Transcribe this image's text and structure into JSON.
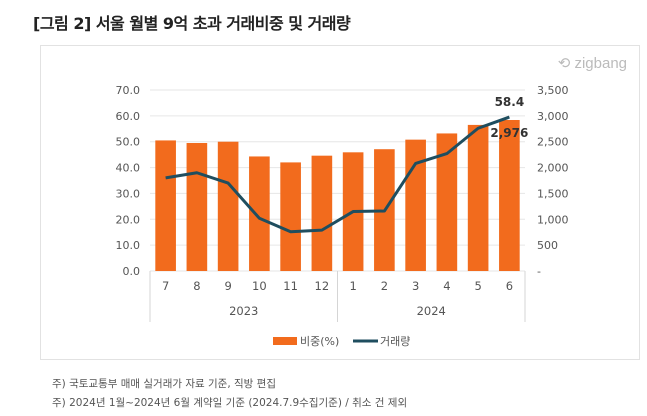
{
  "title": "[그림 2] 서울 월별 9억 초과 거래비중 및 거래량",
  "logo": "zigbang",
  "chart_data": {
    "type": "bar+line",
    "categories": [
      "7",
      "8",
      "9",
      "10",
      "11",
      "12",
      "1",
      "2",
      "3",
      "4",
      "5",
      "6"
    ],
    "year_groups": [
      {
        "label": "2023",
        "span": 6
      },
      {
        "label": "2024",
        "span": 6
      }
    ],
    "series": [
      {
        "name": "비중(%)",
        "type": "bar",
        "axis": "left",
        "color": "#f26b1d",
        "values": [
          50.5,
          49.5,
          50.0,
          44.3,
          42.0,
          44.6,
          45.9,
          47.1,
          50.8,
          53.2,
          56.5,
          58.4
        ]
      },
      {
        "name": "거래량",
        "type": "line",
        "axis": "right",
        "color": "#1f4e5f",
        "values": [
          1800,
          1900,
          1700,
          1020,
          760,
          790,
          1150,
          1160,
          2080,
          2270,
          2760,
          2976
        ]
      }
    ],
    "y_left": {
      "range": [
        0,
        70
      ],
      "ticks": [
        "0.0",
        "10.0",
        "20.0",
        "30.0",
        "40.0",
        "50.0",
        "60.0",
        "70.0"
      ]
    },
    "y_right": {
      "range": [
        0,
        3500
      ],
      "ticks": [
        "-",
        "500",
        "1,000",
        "1,500",
        "2,000",
        "2,500",
        "3,000",
        "3,500"
      ]
    },
    "data_labels": {
      "bar_last": "58.4",
      "line_last": "2,976"
    },
    "grid": true,
    "legend": "bottom"
  },
  "notes": [
    "주) 국토교통부 매매 실거래가 자료 기준, 직방 편집",
    "주) 2024년 1월~2024년 6월 계약일 기준 (2024.7.9수집기준) / 취소 건 제외"
  ]
}
